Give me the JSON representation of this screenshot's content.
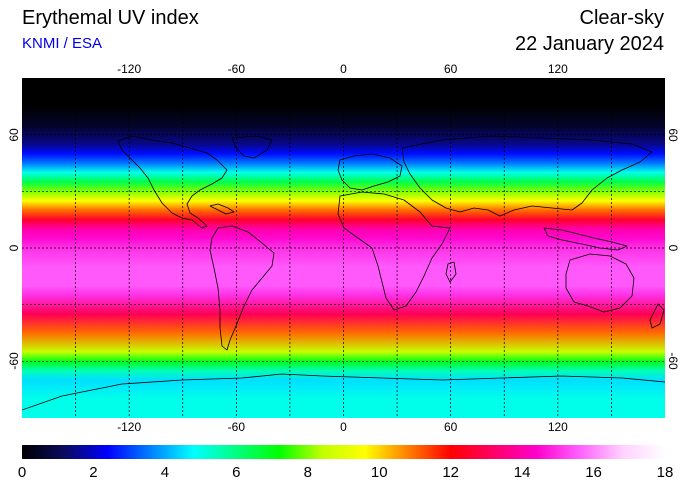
{
  "header": {
    "title": "Erythemal UV index",
    "source": "KNMI / ESA",
    "condition": "Clear-sky",
    "date": "22 January 2024"
  },
  "colors": {
    "source_text": "#0000ee",
    "coastline": "#000000",
    "gridline": "#000000",
    "colorscale": [
      "#000000",
      "#0a0a60",
      "#0000ff",
      "#0080ff",
      "#00ffff",
      "#00ff80",
      "#00ff00",
      "#c0ff00",
      "#ffff00",
      "#ff8000",
      "#ff0000",
      "#ff0066",
      "#ff00cc",
      "#ff60ff",
      "#ffd0ff",
      "#ffffff"
    ]
  },
  "map": {
    "longitude_ticks": [
      "-120",
      "-60",
      "0",
      "60",
      "120"
    ],
    "latitude_ticks": [
      "60",
      "0",
      "-60"
    ],
    "longitude_range": [
      -180,
      180
    ],
    "latitude_range": [
      -90,
      90
    ],
    "grid_interval_deg": 30,
    "uv_by_latitude": [
      {
        "lat": 90,
        "uv": 0
      },
      {
        "lat": 75,
        "uv": 0
      },
      {
        "lat": 65,
        "uv": 0.5
      },
      {
        "lat": 55,
        "uv": 1.5
      },
      {
        "lat": 50,
        "uv": 2.5
      },
      {
        "lat": 45,
        "uv": 3.5
      },
      {
        "lat": 40,
        "uv": 5
      },
      {
        "lat": 35,
        "uv": 6.5
      },
      {
        "lat": 30,
        "uv": 8
      },
      {
        "lat": 25,
        "uv": 9.5
      },
      {
        "lat": 20,
        "uv": 11
      },
      {
        "lat": 15,
        "uv": 12.5
      },
      {
        "lat": 10,
        "uv": 14
      },
      {
        "lat": 5,
        "uv": 14.5
      },
      {
        "lat": 0,
        "uv": 15
      },
      {
        "lat": -10,
        "uv": 15.5
      },
      {
        "lat": -20,
        "uv": 15.5
      },
      {
        "lat": -25,
        "uv": 15
      },
      {
        "lat": -35,
        "uv": 13
      },
      {
        "lat": -45,
        "uv": 11
      },
      {
        "lat": -55,
        "uv": 8.5
      },
      {
        "lat": -60,
        "uv": 7
      },
      {
        "lat": -65,
        "uv": 5.5
      },
      {
        "lat": -70,
        "uv": 4.5
      },
      {
        "lat": -80,
        "uv": 5
      },
      {
        "lat": -90,
        "uv": 5
      }
    ]
  },
  "colorbar": {
    "labels": [
      "0",
      "2",
      "4",
      "6",
      "8",
      "10",
      "12",
      "14",
      "16",
      "18"
    ],
    "min": 0,
    "max": 18
  }
}
